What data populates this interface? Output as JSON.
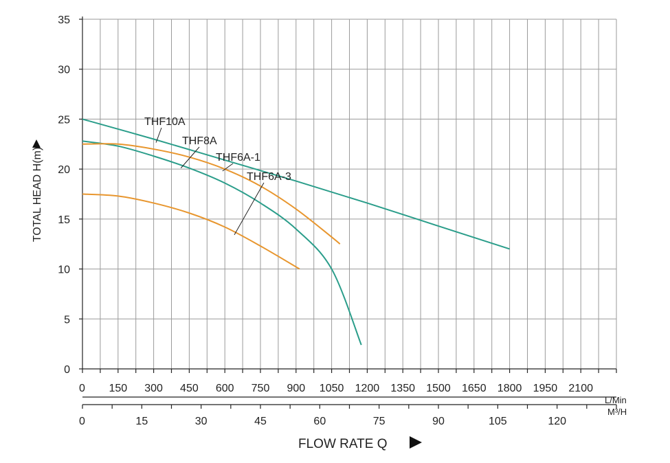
{
  "chart_data": {
    "type": "line",
    "ylabel": "TOTAL HEAD H(m)",
    "xlabel": "FLOW RATE Q",
    "ylim": [
      0,
      35
    ],
    "yticks": [
      0,
      5,
      10,
      15,
      20,
      25,
      30,
      35
    ],
    "xlim": [
      0,
      2250
    ],
    "x_unit_primary": "L/Min",
    "x_unit_secondary": "M³/H",
    "xticks_primary": [
      0,
      150,
      300,
      450,
      600,
      750,
      900,
      1050,
      1200,
      1350,
      1500,
      1650,
      1800,
      1950,
      2100
    ],
    "xticks_secondary": [
      0,
      15,
      30,
      45,
      60,
      75,
      90,
      105,
      120
    ],
    "grid": true,
    "series": [
      {
        "name": "THF10A",
        "color": "#2a9d8a",
        "x": [
          0,
          300,
          600,
          900,
          1200,
          1500,
          1800
        ],
        "y": [
          25.0,
          23.0,
          20.9,
          18.8,
          16.6,
          14.3,
          12.0
        ]
      },
      {
        "name": "THF8A",
        "color": "#2a9d8a",
        "x": [
          0,
          150,
          300,
          450,
          600,
          750,
          900,
          1050,
          1175
        ],
        "y": [
          22.8,
          22.3,
          21.3,
          20.1,
          18.6,
          16.6,
          14.0,
          10.0,
          2.4
        ]
      },
      {
        "name": "THF6A-1",
        "color": "#e8962e",
        "x": [
          0,
          150,
          300,
          450,
          600,
          750,
          900,
          1050,
          1085
        ],
        "y": [
          22.5,
          22.5,
          22.0,
          21.2,
          20.0,
          18.3,
          16.0,
          13.2,
          12.5
        ]
      },
      {
        "name": "THF6A-3",
        "color": "#e8962e",
        "x": [
          0,
          150,
          300,
          450,
          600,
          750,
          915
        ],
        "y": [
          17.5,
          17.3,
          16.6,
          15.6,
          14.2,
          12.3,
          10.0
        ]
      }
    ],
    "annotations": [
      {
        "text": "THF10A",
        "series": "THF10A",
        "x": 310
      },
      {
        "text": "THF8A",
        "series": "THF8A",
        "x": 415
      },
      {
        "text": "THF6A-1",
        "series": "THF6A-1",
        "x": 590
      },
      {
        "text": "THF6A-3",
        "series": "THF6A-3",
        "x": 640
      }
    ]
  }
}
